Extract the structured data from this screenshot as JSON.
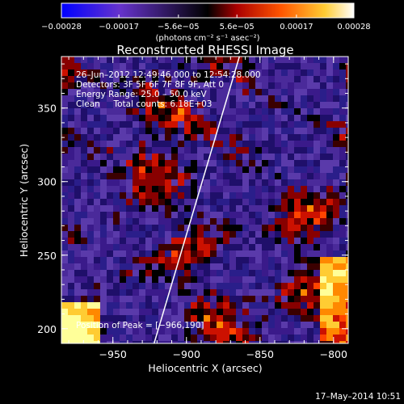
{
  "chart_data": {
    "type": "heatmap",
    "title": "Reconstructed RHESSI Image",
    "xlabel": "Heliocentric X (arcsec)",
    "ylabel": "Heliocentric Y (arcsec)",
    "xlim": [
      -985,
      -790
    ],
    "ylim": [
      190,
      385
    ],
    "x_ticks": [
      -950,
      -900,
      -850,
      -800
    ],
    "x_tick_labels": [
      "−950",
      "−900",
      "−850",
      "−800"
    ],
    "y_ticks": [
      200,
      250,
      300,
      350
    ],
    "y_tick_labels": [
      "200",
      "250",
      "300",
      "350"
    ],
    "colorbar": {
      "range": [
        -0.00028,
        0.00028
      ],
      "tick_values": [
        -0.00028,
        -0.00017,
        -5.6e-05,
        5.6e-05,
        0.00017,
        0.00028
      ],
      "tick_labels": [
        "−0.00028",
        "−0.00017",
        "−5.6e−05",
        "5.6e−05",
        "0.00017",
        "0.00028"
      ],
      "unit_label": "(photons cm⁻² s⁻¹ asec⁻²)",
      "colors": [
        "#0000ff",
        "#6633cc",
        "#000000",
        "#cc0000",
        "#ff7700",
        "#ffff55",
        "#ffffff"
      ]
    },
    "annotations": [
      "26–Jun–2012 12:49:46.000 to 12:54:28.000",
      "Detectors: 3F 5F 6F 7F 8F 9F, Att 0",
      "Energy Range: 25.0 – 50.0 keV",
      "Clean     Total counts: 6.18E+03"
    ],
    "peak_label": "Position of Peak = [−966,190]",
    "limb_line": {
      "x": [
        -922,
        -864
      ],
      "y": [
        190,
        385
      ]
    },
    "timestamp": "17–May–2014 10:51",
    "grid": false,
    "legend": "colorbar-top"
  }
}
